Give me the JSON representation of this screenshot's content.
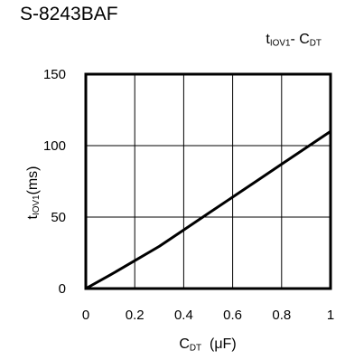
{
  "header": {
    "part_number": "S-8243BAF"
  },
  "chart_data": {
    "type": "line",
    "title_main": "t",
    "title_sub": "IOV1",
    "title_mid": "- C",
    "title_sub2": "DT",
    "ylabel_main": "t",
    "ylabel_sub": "IOV1",
    "ylabel_unit": "(ms)",
    "xlabel_main": "C",
    "xlabel_sub": "DT",
    "xlabel_unit": "(μF)",
    "xlim": [
      0,
      1
    ],
    "ylim": [
      0,
      150
    ],
    "x_ticks": [
      0,
      0.2,
      0.4,
      0.6,
      0.8,
      1
    ],
    "x_tick_labels": [
      "0",
      "0.2",
      "0.4",
      "0.6",
      "0.8",
      "1"
    ],
    "y_ticks": [
      0,
      50,
      100,
      150
    ],
    "y_tick_labels": [
      "0",
      "50",
      "100",
      "150"
    ],
    "grid": true,
    "series": [
      {
        "x": [
          0,
          0.1,
          0.2,
          0.3,
          0.4,
          0.5,
          0.6,
          0.7,
          0.8,
          0.9,
          1.0
        ],
        "y": [
          0,
          9.5,
          19.5,
          29.5,
          41,
          52.5,
          64,
          75.5,
          87,
          98.5,
          110
        ]
      }
    ]
  }
}
